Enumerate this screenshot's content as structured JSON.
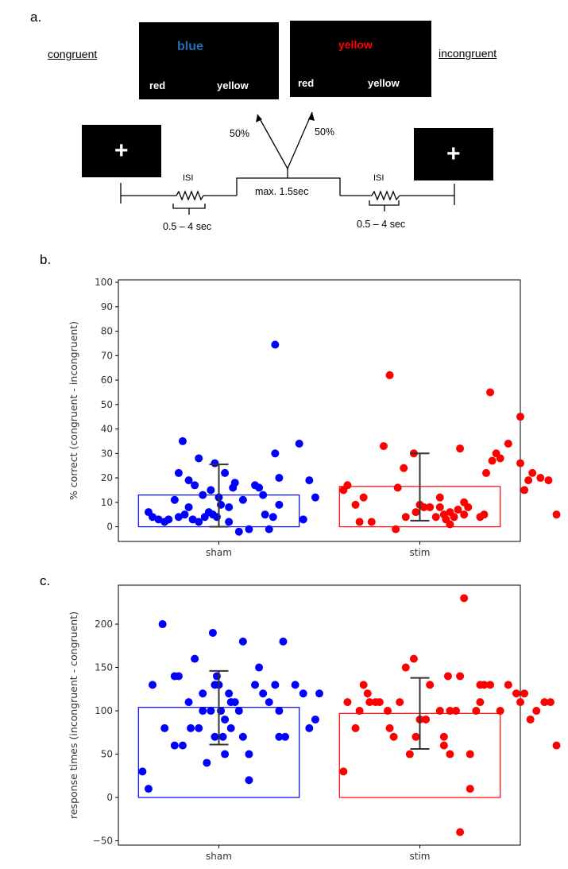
{
  "panel_a": {
    "label": "a.",
    "left_label": "congruent",
    "right_label": "incongruent",
    "congruent_screen": {
      "word": "blue",
      "word_color": "#1f6fb5",
      "option_left": "red",
      "option_right": "yellow"
    },
    "incongruent_screen": {
      "word": "yellow",
      "word_color": "#ff0000",
      "option_left": "red",
      "option_right": "yellow"
    },
    "fixation_symbol": "+",
    "prob_left": "50%",
    "prob_right": "50%",
    "isi_label": "ISI",
    "isi_range": "0.5 – 4 sec",
    "response_window": "max. 1.5sec"
  },
  "panel_b_label": "b.",
  "panel_c_label": "c.",
  "colors": {
    "sham": "#0000ff",
    "stim": "#ff0000",
    "error_bar": "#333333"
  },
  "chart_data": [
    {
      "type": "bar",
      "categories": [
        "sham",
        "stim"
      ],
      "values": [
        13,
        16.5
      ],
      "error": [
        [
          0,
          25.5
        ],
        [
          2.5,
          30
        ]
      ],
      "ylabel": "% correct (congruent - incongruent)",
      "ylim": [
        -6,
        101
      ],
      "yticks": [
        0,
        10,
        20,
        30,
        40,
        50,
        60,
        70,
        80,
        90,
        100
      ],
      "grid": false,
      "points": {
        "sham": [
          [
            -0.35,
            6
          ],
          [
            -0.33,
            4
          ],
          [
            -0.3,
            3
          ],
          [
            -0.27,
            2
          ],
          [
            -0.25,
            3
          ],
          [
            -0.22,
            11
          ],
          [
            -0.2,
            4
          ],
          [
            -0.17,
            5
          ],
          [
            -0.15,
            8
          ],
          [
            -0.13,
            3
          ],
          [
            -0.2,
            22
          ],
          [
            -0.15,
            19
          ],
          [
            -0.12,
            17
          ],
          [
            -0.1,
            28
          ],
          [
            -0.18,
            35
          ],
          [
            -0.1,
            2
          ],
          [
            -0.07,
            4
          ],
          [
            -0.05,
            6
          ],
          [
            -0.03,
            5
          ],
          [
            -0.01,
            4
          ],
          [
            0.01,
            9
          ],
          [
            -0.08,
            13
          ],
          [
            -0.04,
            15
          ],
          [
            -0.02,
            26
          ],
          [
            0.0,
            12
          ],
          [
            0.03,
            22
          ],
          [
            0.05,
            8
          ],
          [
            0.07,
            16
          ],
          [
            0.08,
            18
          ],
          [
            0.05,
            2
          ],
          [
            0.1,
            -2
          ],
          [
            0.12,
            11
          ],
          [
            0.15,
            -1
          ],
          [
            0.18,
            17
          ],
          [
            0.2,
            16
          ],
          [
            0.22,
            13
          ],
          [
            0.25,
            -1
          ],
          [
            0.23,
            5
          ],
          [
            0.27,
            4
          ],
          [
            0.3,
            9
          ],
          [
            0.28,
            30
          ],
          [
            0.3,
            20
          ],
          [
            0.4,
            34
          ],
          [
            0.42,
            3
          ],
          [
            0.45,
            19
          ],
          [
            0.48,
            12
          ],
          [
            0.28,
            74.5
          ]
        ],
        "stim": [
          [
            0.62,
            15
          ],
          [
            0.64,
            17
          ],
          [
            0.68,
            9
          ],
          [
            0.7,
            2
          ],
          [
            0.72,
            12
          ],
          [
            0.76,
            2
          ],
          [
            0.82,
            33
          ],
          [
            0.85,
            62
          ],
          [
            0.88,
            -1
          ],
          [
            0.89,
            16
          ],
          [
            0.93,
            4
          ],
          [
            0.92,
            24
          ],
          [
            0.97,
            30
          ],
          [
            0.98,
            6
          ],
          [
            1.0,
            9
          ],
          [
            1.02,
            8
          ],
          [
            1.05,
            8
          ],
          [
            1.08,
            4
          ],
          [
            1.1,
            12
          ],
          [
            1.1,
            8
          ],
          [
            1.12,
            5
          ],
          [
            1.13,
            3
          ],
          [
            1.15,
            6
          ],
          [
            1.15,
            1
          ],
          [
            1.17,
            4
          ],
          [
            1.19,
            7
          ],
          [
            1.2,
            32
          ],
          [
            1.22,
            10
          ],
          [
            1.24,
            8
          ],
          [
            1.22,
            5
          ],
          [
            1.3,
            4
          ],
          [
            1.32,
            5
          ],
          [
            1.33,
            22
          ],
          [
            1.36,
            27
          ],
          [
            1.38,
            30
          ],
          [
            1.4,
            28
          ],
          [
            1.44,
            34
          ],
          [
            1.35,
            55
          ],
          [
            1.5,
            26
          ],
          [
            1.52,
            15
          ],
          [
            1.54,
            19
          ],
          [
            1.56,
            22
          ],
          [
            1.6,
            20
          ],
          [
            1.64,
            19
          ],
          [
            1.68,
            5
          ],
          [
            1.5,
            45
          ]
        ]
      }
    },
    {
      "type": "bar",
      "categories": [
        "sham",
        "stim"
      ],
      "values": [
        104,
        97
      ],
      "error": [
        [
          61,
          146
        ],
        [
          56,
          138
        ]
      ],
      "ylabel": "response times (incongruent - congruent)",
      "ylim": [
        -55,
        245
      ],
      "yticks": [
        -50,
        0,
        50,
        100,
        150,
        200
      ],
      "grid": false,
      "points": {
        "sham": [
          [
            -0.38,
            30
          ],
          [
            -0.35,
            10
          ],
          [
            -0.33,
            130
          ],
          [
            -0.28,
            200
          ],
          [
            -0.27,
            80
          ],
          [
            -0.22,
            140
          ],
          [
            -0.2,
            140
          ],
          [
            -0.22,
            60
          ],
          [
            -0.18,
            60
          ],
          [
            -0.15,
            110
          ],
          [
            -0.14,
            80
          ],
          [
            -0.12,
            160
          ],
          [
            -0.1,
            80
          ],
          [
            -0.08,
            120
          ],
          [
            -0.08,
            100
          ],
          [
            -0.06,
            40
          ],
          [
            -0.04,
            100
          ],
          [
            -0.03,
            190
          ],
          [
            -0.02,
            130
          ],
          [
            -0.02,
            70
          ],
          [
            -0.01,
            140
          ],
          [
            0.0,
            130
          ],
          [
            0.01,
            100
          ],
          [
            0.02,
            70
          ],
          [
            0.03,
            50
          ],
          [
            0.03,
            90
          ],
          [
            0.06,
            110
          ],
          [
            0.05,
            120
          ],
          [
            0.06,
            80
          ],
          [
            0.08,
            110
          ],
          [
            0.1,
            100
          ],
          [
            0.12,
            180
          ],
          [
            0.12,
            70
          ],
          [
            0.15,
            50
          ],
          [
            0.18,
            130
          ],
          [
            0.2,
            150
          ],
          [
            0.22,
            120
          ],
          [
            0.15,
            20
          ],
          [
            0.25,
            110
          ],
          [
            0.28,
            130
          ],
          [
            0.3,
            70
          ],
          [
            0.3,
            100
          ],
          [
            0.32,
            180
          ],
          [
            0.33,
            70
          ],
          [
            0.38,
            130
          ],
          [
            0.42,
            120
          ],
          [
            0.45,
            80
          ],
          [
            0.48,
            90
          ],
          [
            0.5,
            120
          ]
        ],
        "stim": [
          [
            0.62,
            30
          ],
          [
            0.64,
            110
          ],
          [
            0.68,
            80
          ],
          [
            0.7,
            100
          ],
          [
            0.72,
            130
          ],
          [
            0.74,
            120
          ],
          [
            0.75,
            110
          ],
          [
            0.78,
            110
          ],
          [
            0.8,
            110
          ],
          [
            0.84,
            100
          ],
          [
            0.85,
            80
          ],
          [
            0.87,
            70
          ],
          [
            0.9,
            110
          ],
          [
            0.93,
            150
          ],
          [
            0.95,
            50
          ],
          [
            0.97,
            160
          ],
          [
            0.98,
            70
          ],
          [
            1.0,
            90
          ],
          [
            1.03,
            90
          ],
          [
            1.05,
            130
          ],
          [
            1.1,
            100
          ],
          [
            1.12,
            60
          ],
          [
            1.12,
            70
          ],
          [
            1.14,
            140
          ],
          [
            1.15,
            100
          ],
          [
            1.18,
            100
          ],
          [
            1.2,
            140
          ],
          [
            1.15,
            50
          ],
          [
            1.22,
            230
          ],
          [
            1.25,
            50
          ],
          [
            1.28,
            100
          ],
          [
            1.3,
            130
          ],
          [
            1.3,
            110
          ],
          [
            1.32,
            130
          ],
          [
            1.35,
            130
          ],
          [
            1.4,
            100
          ],
          [
            1.44,
            130
          ],
          [
            1.48,
            120
          ],
          [
            1.5,
            110
          ],
          [
            1.52,
            120
          ],
          [
            1.55,
            90
          ],
          [
            1.58,
            100
          ],
          [
            1.62,
            110
          ],
          [
            1.65,
            110
          ],
          [
            1.68,
            60
          ],
          [
            1.25,
            10
          ],
          [
            1.2,
            -40
          ]
        ]
      }
    }
  ]
}
